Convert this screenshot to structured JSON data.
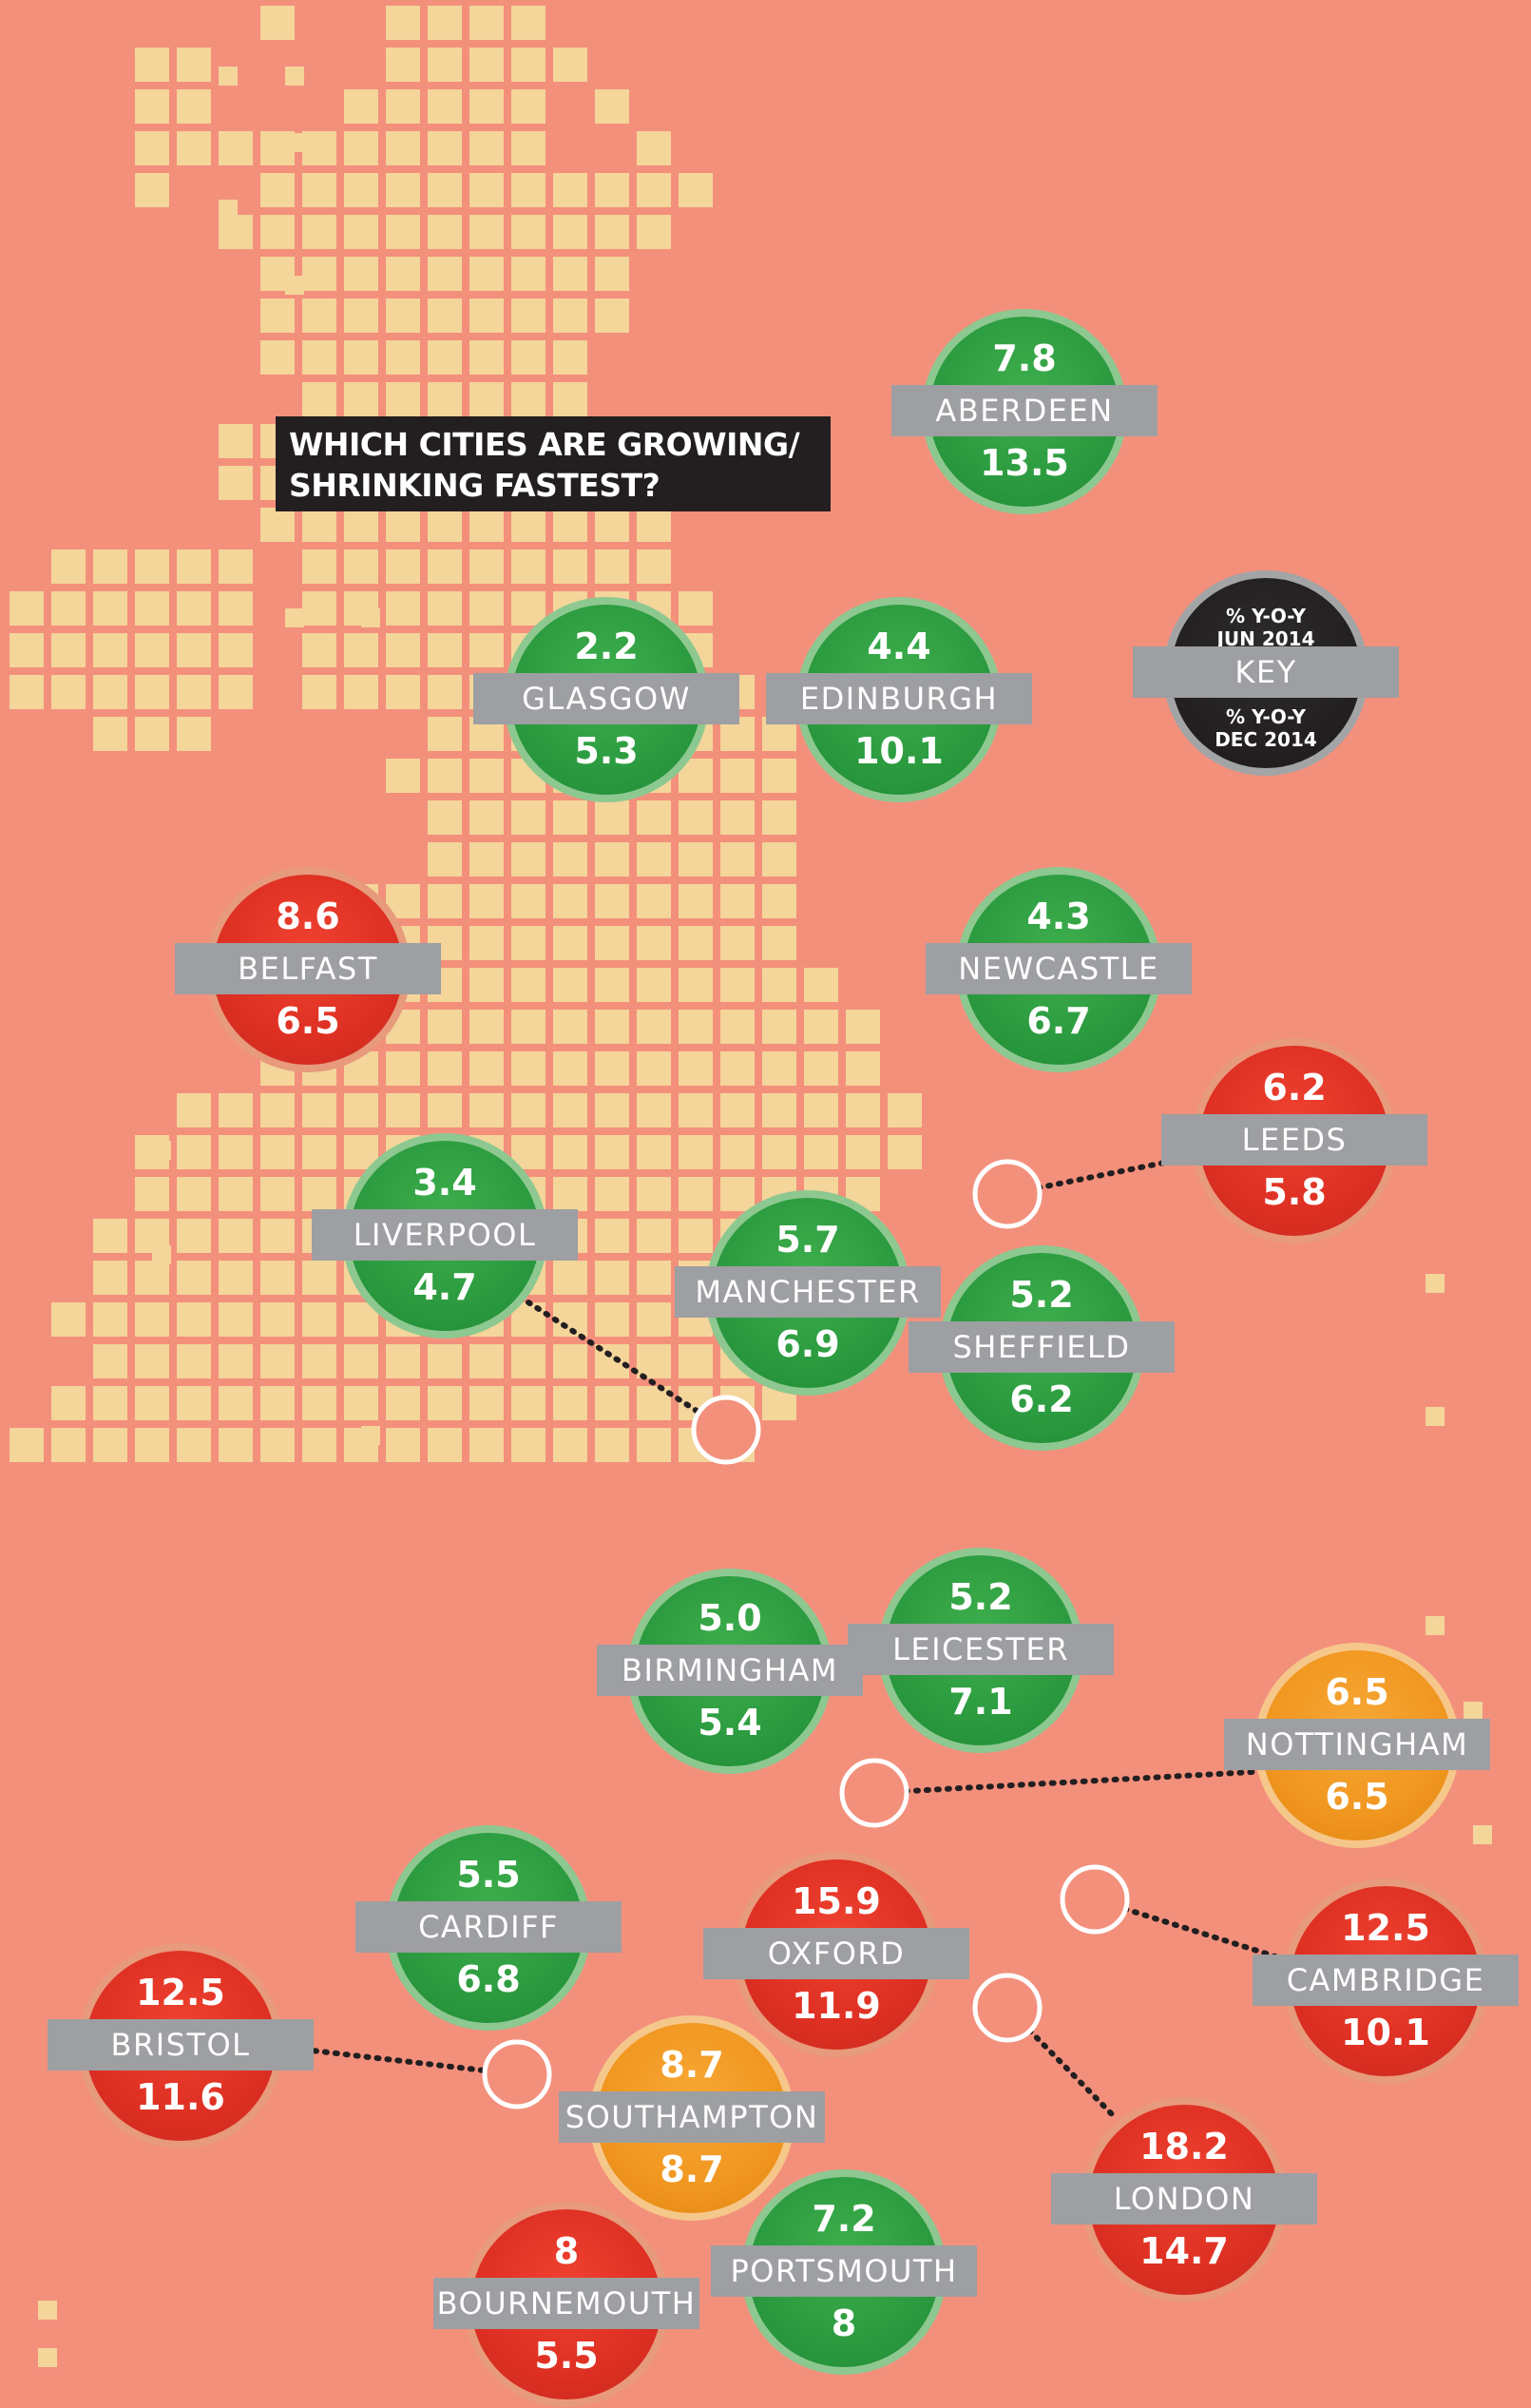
{
  "title": {
    "line1": "WHICH CITIES ARE GROWING/",
    "line2": "SHRINKING FASTEST?"
  },
  "key": {
    "top": "% Y-O-Y",
    "top2": "JUN 2014",
    "label": "KEY",
    "bottom": "% Y-O-Y",
    "bottom2": "DEC 2014"
  },
  "colors": {
    "background": "#f3907c",
    "land": "#f4d59a",
    "green": "#2b9a3f",
    "red": "#dd2f22",
    "orange": "#f0961f",
    "label_band": "#9d9fa2",
    "title_bg": "#231f20"
  },
  "cities": [
    {
      "name": "ABERDEEN",
      "jun2014": "7.8",
      "dec2014": "13.5",
      "status": "green"
    },
    {
      "name": "GLASGOW",
      "jun2014": "2.2",
      "dec2014": "5.3",
      "status": "green"
    },
    {
      "name": "EDINBURGH",
      "jun2014": "4.4",
      "dec2014": "10.1",
      "status": "green"
    },
    {
      "name": "BELFAST",
      "jun2014": "8.6",
      "dec2014": "6.5",
      "status": "red"
    },
    {
      "name": "NEWCASTLE",
      "jun2014": "4.3",
      "dec2014": "6.7",
      "status": "green"
    },
    {
      "name": "LEEDS",
      "jun2014": "6.2",
      "dec2014": "5.8",
      "status": "red"
    },
    {
      "name": "LIVERPOOL",
      "jun2014": "3.4",
      "dec2014": "4.7",
      "status": "green"
    },
    {
      "name": "MANCHESTER",
      "jun2014": "5.7",
      "dec2014": "6.9",
      "status": "green"
    },
    {
      "name": "SHEFFIELD",
      "jun2014": "5.2",
      "dec2014": "6.2",
      "status": "green"
    },
    {
      "name": "BIRMINGHAM",
      "jun2014": "5.0",
      "dec2014": "5.4",
      "status": "green"
    },
    {
      "name": "LEICESTER",
      "jun2014": "5.2",
      "dec2014": "7.1",
      "status": "green"
    },
    {
      "name": "NOTTINGHAM",
      "jun2014": "6.5",
      "dec2014": "6.5",
      "status": "orange"
    },
    {
      "name": "CARDIFF",
      "jun2014": "5.5",
      "dec2014": "6.8",
      "status": "green"
    },
    {
      "name": "OXFORD",
      "jun2014": "15.9",
      "dec2014": "11.9",
      "status": "red"
    },
    {
      "name": "CAMBRIDGE",
      "jun2014": "12.5",
      "dec2014": "10.1",
      "status": "red"
    },
    {
      "name": "BRISTOL",
      "jun2014": "12.5",
      "dec2014": "11.6",
      "status": "red"
    },
    {
      "name": "SOUTHAMPTON",
      "jun2014": "8.7",
      "dec2014": "8.7",
      "status": "orange"
    },
    {
      "name": "LONDON",
      "jun2014": "18.2",
      "dec2014": "14.7",
      "status": "red"
    },
    {
      "name": "PORTSMOUTH",
      "jun2014": "7.2",
      "dec2014": "8",
      "status": "green"
    },
    {
      "name": "BOURNEMOUTH",
      "jun2014": "8",
      "dec2014": "5.5",
      "status": "red"
    }
  ]
}
